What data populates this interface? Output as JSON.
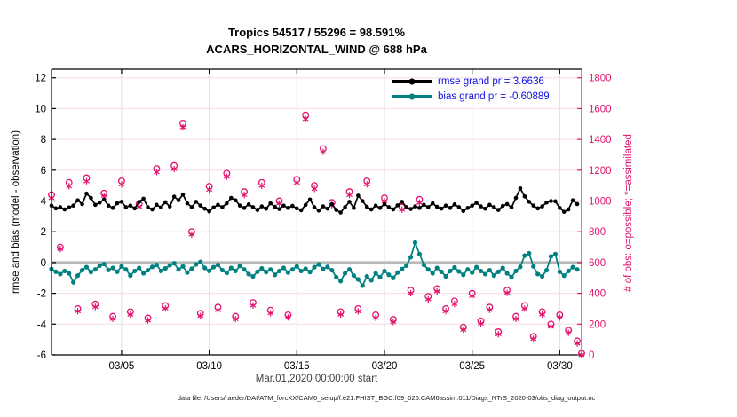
{
  "figure": {
    "title_line1": "Tropics 54517 / 55296 = 98.591%",
    "title_line2": "ACARS_HORIZONTAL_WIND @ 688 hPa",
    "xlabel": "Mar.01,2020 00:00:00 start",
    "ylabel_left": "rmse and bias (model - observation)",
    "ylabel_right": "# of obs: o=possible; *=assimilated",
    "datafile": "data file: /Users/raeder/DAI/ATM_forcXX/CAM6_setup/f.e21.FHIST_BGC.f09_025.CAM6assim.011/Diags_NTrS_2020-03/obs_diag_output.nc"
  },
  "legend": {
    "rmse_label": "rmse grand pr = 3.6636",
    "bias_label": "bias grand pr = -0.60889"
  },
  "stats": {
    "rmse_grand": 3.6636,
    "bias_grand": -0.60889,
    "assimilated_total": 54517,
    "possible_total": 55296,
    "percent_assimilated": 98.591
  },
  "colors": {
    "rmse": "#000000",
    "bias": "#008080",
    "obs": "#e1146e",
    "legend_text": "#1010e0",
    "grid_h": "#f6dbe6",
    "grid_v": "#e0dce1",
    "zero_line": "#b9b9b9",
    "spine": "#000000",
    "right_spine": "#e1146e"
  },
  "chart_data": {
    "type": "line",
    "title": "Tropics 54517 / 55296 = 98.591% | ACARS_HORIZONTAL_WIND @ 688 hPa",
    "xlabel": "Mar.01,2020 00:00:00 start",
    "x_units": "days since 2020-03-01 00:00",
    "axes": {
      "x": {
        "min": 0,
        "max": 30.25,
        "ticks": [
          4,
          9,
          14,
          19,
          24,
          29
        ],
        "tick_labels": [
          "03/05",
          "03/10",
          "03/15",
          "03/20",
          "03/25",
          "03/30"
        ]
      },
      "left": {
        "label": "rmse and bias (model - observation)",
        "min": -6,
        "max": 12.56,
        "ticks": [
          -6,
          -4,
          -2,
          0,
          2,
          4,
          6,
          8,
          10,
          12
        ]
      },
      "right": {
        "label": "# of obs: o=possible; *=assimilated",
        "min": 0,
        "max": 1856,
        "ticks": [
          0,
          200,
          400,
          600,
          800,
          1000,
          1200,
          1400,
          1600,
          1800
        ]
      }
    },
    "grid": true,
    "legend_position": "top-right-inside",
    "series": [
      {
        "name": "rmse",
        "plot": "line",
        "axis": "left",
        "marker": "dot",
        "x_start_day": 0,
        "x_step_days": 0.25,
        "values": [
          3.7,
          3.52,
          3.6,
          3.45,
          3.58,
          3.7,
          4.05,
          3.8,
          4.48,
          4.2,
          3.75,
          3.9,
          4.1,
          3.7,
          3.55,
          3.85,
          3.95,
          3.6,
          3.7,
          3.52,
          3.95,
          4.15,
          3.6,
          3.45,
          3.75,
          3.58,
          3.92,
          3.64,
          4.28,
          4.05,
          4.42,
          3.85,
          3.6,
          3.95,
          3.7,
          3.5,
          3.32,
          3.58,
          3.75,
          3.6,
          3.85,
          4.2,
          4.05,
          3.7,
          3.55,
          3.78,
          3.6,
          3.42,
          3.65,
          3.5,
          3.85,
          3.62,
          3.48,
          3.7,
          3.55,
          3.68,
          3.52,
          3.4,
          3.75,
          4.1,
          3.6,
          3.38,
          3.65,
          3.5,
          3.8,
          3.42,
          3.25,
          3.6,
          3.95,
          3.55,
          4.35,
          4.0,
          3.62,
          3.45,
          3.7,
          3.55,
          3.8,
          3.6,
          3.45,
          3.72,
          3.95,
          3.6,
          3.48,
          3.65,
          3.55,
          3.75,
          3.6,
          3.85,
          3.62,
          3.5,
          3.7,
          3.55,
          3.78,
          3.6,
          3.35,
          3.55,
          3.7,
          3.88,
          3.65,
          3.5,
          3.75,
          3.6,
          3.42,
          3.68,
          3.8,
          3.58,
          4.2,
          4.82,
          4.3,
          3.95,
          3.7,
          3.52,
          3.65,
          3.9,
          4.0,
          3.98,
          3.55,
          3.3,
          3.45,
          4.05,
          3.8
        ]
      },
      {
        "name": "bias",
        "plot": "line",
        "axis": "left",
        "marker": "dot",
        "x_start_day": 0,
        "x_step_days": 0.25,
        "values": [
          -0.42,
          -0.6,
          -0.75,
          -0.55,
          -0.7,
          -1.28,
          -0.85,
          -0.5,
          -0.3,
          -0.62,
          -0.45,
          -0.2,
          -0.1,
          -0.48,
          -0.35,
          -0.6,
          -0.25,
          -0.45,
          -0.85,
          -0.55,
          -0.35,
          -0.7,
          -0.5,
          -0.28,
          -0.15,
          -0.55,
          -0.38,
          -0.18,
          -0.05,
          -0.45,
          -0.25,
          -0.65,
          -0.4,
          -0.12,
          0.05,
          -0.35,
          -0.55,
          -0.3,
          -0.15,
          -0.5,
          -0.68,
          -0.35,
          -0.55,
          -0.22,
          -0.45,
          -0.75,
          -0.9,
          -0.6,
          -0.38,
          -0.62,
          -0.45,
          -0.8,
          -0.55,
          -0.35,
          -0.65,
          -0.45,
          -0.25,
          -0.55,
          -0.4,
          -0.62,
          -0.3,
          -0.12,
          -0.42,
          -0.28,
          -0.5,
          -0.95,
          -1.2,
          -0.7,
          -0.45,
          -0.85,
          -1.1,
          -1.5,
          -0.9,
          -1.15,
          -0.7,
          -0.95,
          -0.55,
          -0.8,
          -1.0,
          -0.65,
          -0.42,
          -0.2,
          0.35,
          1.3,
          0.55,
          -0.15,
          -0.45,
          -0.7,
          -0.35,
          -0.6,
          -0.9,
          -0.55,
          -0.32,
          -0.58,
          -0.8,
          -0.45,
          -0.65,
          -0.3,
          -0.55,
          -0.75,
          -0.5,
          -0.85,
          -0.6,
          -0.35,
          -0.7,
          -0.95,
          -0.55,
          -0.28,
          0.45,
          0.6,
          -0.25,
          -0.75,
          -0.9,
          -0.5,
          0.4,
          0.55,
          -0.6,
          -0.85,
          -0.55,
          -0.3,
          -0.45
        ]
      },
      {
        "name": "possible",
        "plot": "scatter",
        "axis": "right",
        "marker": "circle",
        "days": [
          0,
          0.5,
          1,
          1.5,
          2,
          2.5,
          3,
          3.5,
          4,
          4.5,
          5,
          5.5,
          6,
          6.5,
          7,
          7.5,
          8,
          8.5,
          9,
          9.5,
          10,
          10.5,
          11,
          11.5,
          12,
          12.5,
          13,
          13.5,
          14,
          14.5,
          15,
          15.5,
          16,
          16.5,
          17,
          17.5,
          18,
          18.5,
          19,
          19.5,
          20,
          20.5,
          21,
          21.5,
          22,
          22.5,
          23,
          23.5,
          24,
          24.5,
          25,
          25.5,
          26,
          26.5,
          27,
          27.5,
          28,
          28.5,
          29,
          29.5,
          30,
          30.25
        ],
        "values": [
          1040,
          700,
          1120,
          300,
          1150,
          330,
          1050,
          250,
          1130,
          280,
          980,
          240,
          1210,
          320,
          1230,
          1505,
          800,
          270,
          1095,
          310,
          1180,
          250,
          1060,
          340,
          1120,
          290,
          1000,
          260,
          1140,
          1558,
          1100,
          1340,
          990,
          280,
          1060,
          300,
          1130,
          260,
          1020,
          230,
          960,
          420,
          1010,
          380,
          430,
          300,
          350,
          180,
          400,
          220,
          310,
          150,
          420,
          250,
          320,
          120,
          280,
          200,
          260,
          160,
          90,
          10
        ]
      },
      {
        "name": "assimilated",
        "plot": "scatter",
        "axis": "right",
        "marker": "asterisk",
        "days": [
          0,
          0.5,
          1,
          1.5,
          2,
          2.5,
          3,
          3.5,
          4,
          4.5,
          5,
          5.5,
          6,
          6.5,
          7,
          7.5,
          8,
          8.5,
          9,
          9.5,
          10,
          10.5,
          11,
          11.5,
          12,
          12.5,
          13,
          13.5,
          14,
          14.5,
          15,
          15.5,
          16,
          16.5,
          17,
          17.5,
          18,
          18.5,
          19,
          19.5,
          20,
          20.5,
          21,
          21.5,
          22,
          22.5,
          23,
          23.5,
          24,
          24.5,
          25,
          25.5,
          26,
          26.5,
          27,
          27.5,
          28,
          28.5,
          29,
          29.5,
          30,
          30.25
        ],
        "values": [
          1020,
          688,
          1096,
          284,
          1128,
          312,
          1034,
          234,
          1108,
          262,
          963,
          224,
          1188,
          302,
          1208,
          1478,
          782,
          253,
          1074,
          291,
          1158,
          233,
          1039,
          321,
          1099,
          271,
          984,
          244,
          1119,
          1532,
          1079,
          1319,
          973,
          262,
          1039,
          283,
          1108,
          241,
          999,
          214,
          944,
          401,
          989,
          361,
          413,
          284,
          331,
          163,
          383,
          204,
          293,
          134,
          403,
          234,
          301,
          104,
          263,
          184,
          243,
          143,
          74,
          0
        ]
      }
    ]
  }
}
